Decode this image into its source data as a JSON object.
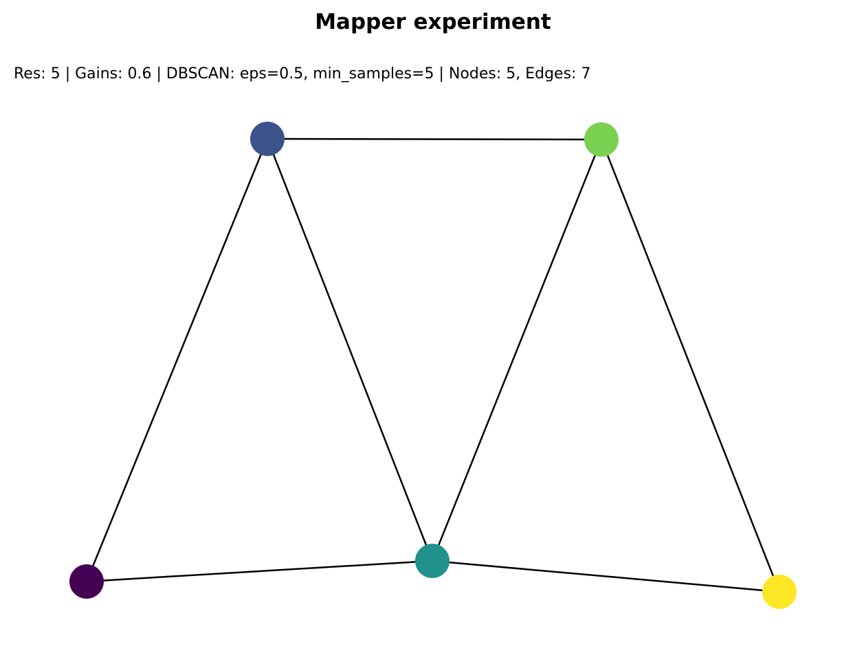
{
  "title": "Mapper experiment",
  "subtitle": "Res: 5 | Gains: 0.6 | DBSCAN: eps=0.5, min_samples=5 | Nodes: 5, Edges: 7",
  "graph": {
    "nodes": [
      {
        "id": "n0",
        "color": "#440154"
      },
      {
        "id": "n1",
        "color": "#3b528b"
      },
      {
        "id": "n2",
        "color": "#21918c"
      },
      {
        "id": "n3",
        "color": "#7ad151"
      },
      {
        "id": "n4",
        "color": "#fde725"
      }
    ],
    "edges": [
      [
        "n0",
        "n1"
      ],
      [
        "n0",
        "n2"
      ],
      [
        "n1",
        "n2"
      ],
      [
        "n1",
        "n3"
      ],
      [
        "n2",
        "n3"
      ],
      [
        "n2",
        "n4"
      ],
      [
        "n3",
        "n4"
      ]
    ],
    "edge_color": "#000000"
  }
}
